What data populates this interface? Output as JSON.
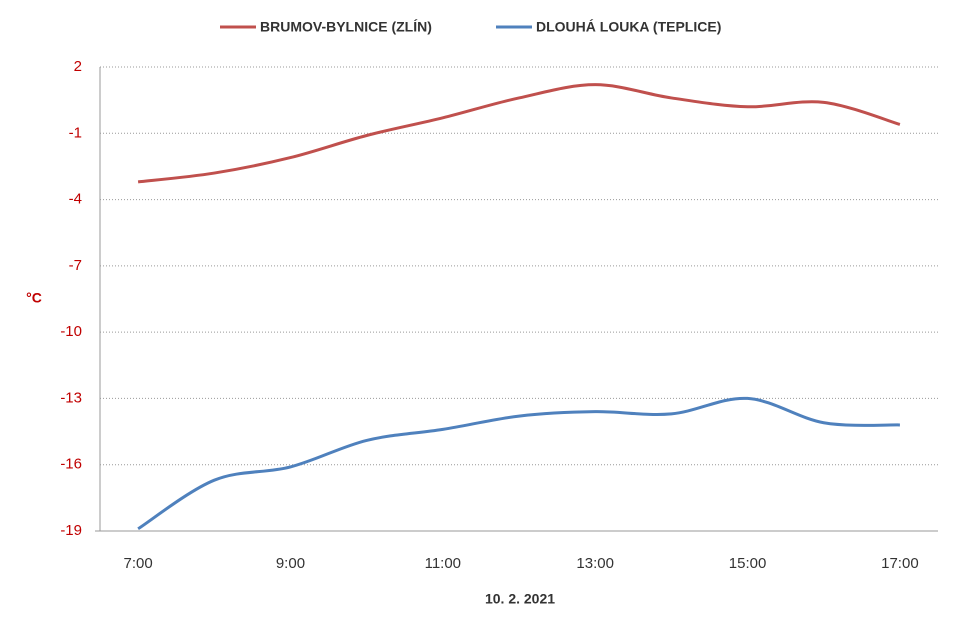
{
  "chart_data": {
    "type": "line",
    "xlabel": "10. 2. 2021",
    "ylabel": "°C",
    "categories": [
      "7:00",
      null,
      "9:00",
      null,
      "11:00",
      null,
      "13:00",
      null,
      "15:00",
      null,
      "17:00"
    ],
    "series": [
      {
        "name": "BRUMOV-BYLNICE (ZLÍN)",
        "color": "#c0504d",
        "values": [
          -3.2,
          -2.8,
          -2.1,
          -1.1,
          -0.3,
          0.6,
          1.2,
          0.6,
          0.2,
          0.4,
          -0.6
        ]
      },
      {
        "name": "DLOUHÁ LOUKA (TEPLICE)",
        "color": "#4f81bd",
        "values": [
          -18.9,
          -16.7,
          -16.1,
          -14.9,
          -14.4,
          -13.8,
          -13.6,
          -13.7,
          -13.0,
          -14.1,
          -14.2
        ]
      }
    ],
    "ylim": [
      -19,
      2
    ],
    "yticks": [
      -19,
      -16,
      -13,
      -10,
      -7,
      -4,
      -1,
      2
    ],
    "grid": true,
    "legend": "top",
    "tick_color": "#c00000"
  }
}
